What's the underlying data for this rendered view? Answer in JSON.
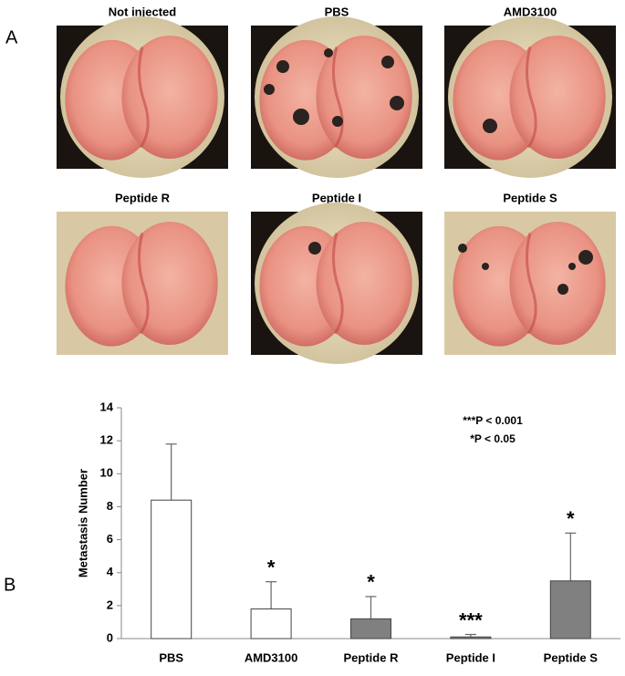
{
  "panel_a": {
    "label": "A",
    "images": [
      {
        "title": "Not injected"
      },
      {
        "title": "PBS"
      },
      {
        "title": "AMD3100"
      },
      {
        "title": "Peptide R"
      },
      {
        "title": "Peptide I"
      },
      {
        "title": "Peptide S"
      }
    ]
  },
  "panel_b_label": "B",
  "chart_data": {
    "type": "bar",
    "ylabel": "Metastasis Number",
    "categories": [
      "PBS",
      "AMD3100",
      "Peptide R",
      "Peptide I",
      "Peptide S"
    ],
    "values": [
      8.4,
      1.8,
      1.2,
      0.1,
      3.5
    ],
    "errors": [
      3.4,
      1.65,
      1.35,
      0.15,
      2.9
    ],
    "colors": [
      "#ffffff",
      "#ffffff",
      "#808080",
      "#808080",
      "#808080"
    ],
    "annotations": [
      null,
      "*",
      "*",
      "***",
      "*"
    ],
    "notes": [
      "***P < 0.001",
      "*P < 0.05"
    ],
    "ylim": [
      0,
      14
    ],
    "yticks": [
      0,
      2,
      4,
      6,
      8,
      10,
      12,
      14
    ],
    "grid": false
  }
}
